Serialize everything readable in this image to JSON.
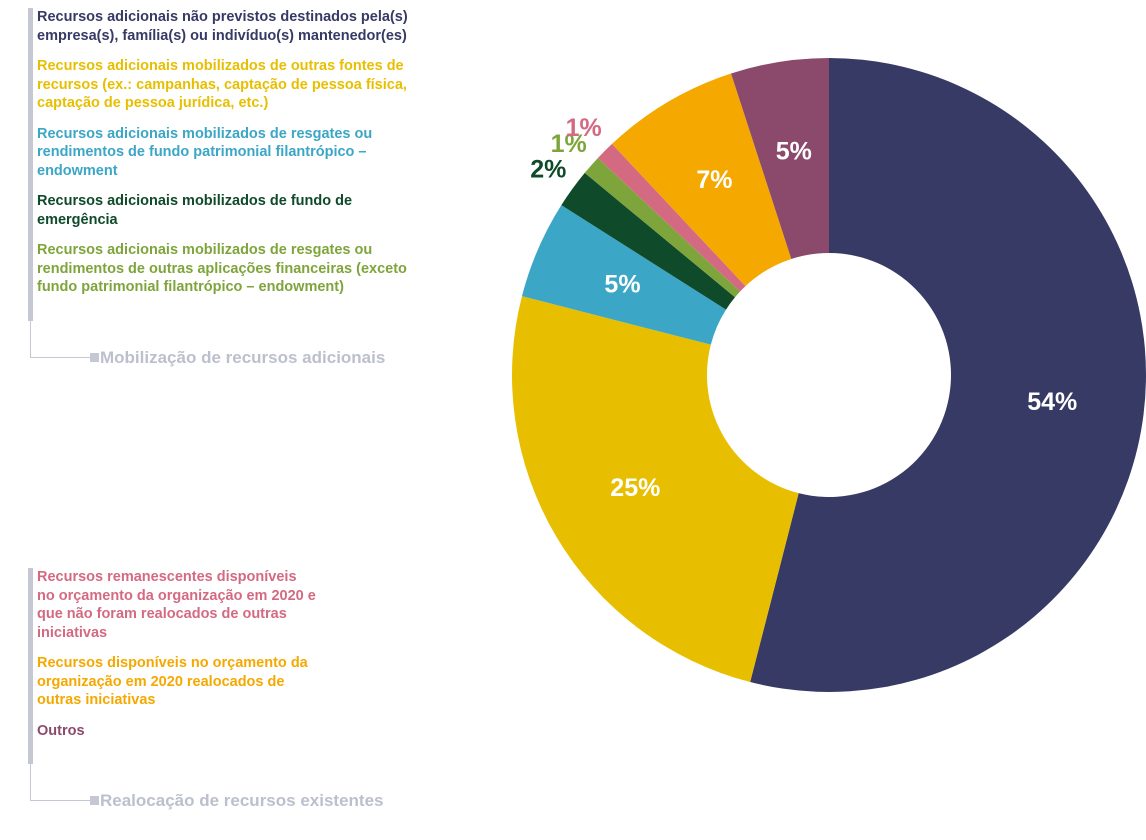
{
  "chart_data": {
    "type": "donut",
    "categories": [
      "Recursos adicionais não previstos destinados pela(s) empresa(s), família(s) ou indivíduo(s) mantenedor(es)",
      "Recursos adicionais mobilizados de outras fontes de recursos (ex.: campanhas, captação de pessoa física, captação de pessoa jurídica, etc.)",
      "Recursos adicionais mobilizados de resgates ou rendimentos de fundo patrimonial filantrópico – endowment",
      "Recursos adicionais mobilizados de fundo de emergência",
      "Recursos adicionais mobilizados de resgates ou rendimentos de outras aplicações financeiras (exceto fundo patrimonial filantrópico – endowment)",
      "Recursos remanescentes disponíveis no orçamento da organização em 2020 e que não foram realocados de outras iniciativas",
      "Recursos disponíveis no orçamento da organização em 2020 realocados de outras iniciativas",
      "Outros"
    ],
    "values": [
      54,
      25,
      5,
      2,
      1,
      1,
      7,
      5
    ],
    "value_labels": [
      "54%",
      "25%",
      "5%",
      "2%",
      "1%",
      "1%",
      "7%",
      "5%"
    ],
    "colors": [
      "#373a65",
      "#e8bf00",
      "#3ba6c6",
      "#0f4a2a",
      "#7ea53b",
      "#d46a82",
      "#f5a800",
      "#8b4a6c"
    ],
    "legend_groups": [
      {
        "title": "Mobilização de recursos adicionais",
        "items": [
          0,
          1,
          2,
          3,
          4
        ]
      },
      {
        "title": "Realocação de recursos existentes",
        "items": [
          5,
          6,
          7
        ]
      }
    ]
  }
}
